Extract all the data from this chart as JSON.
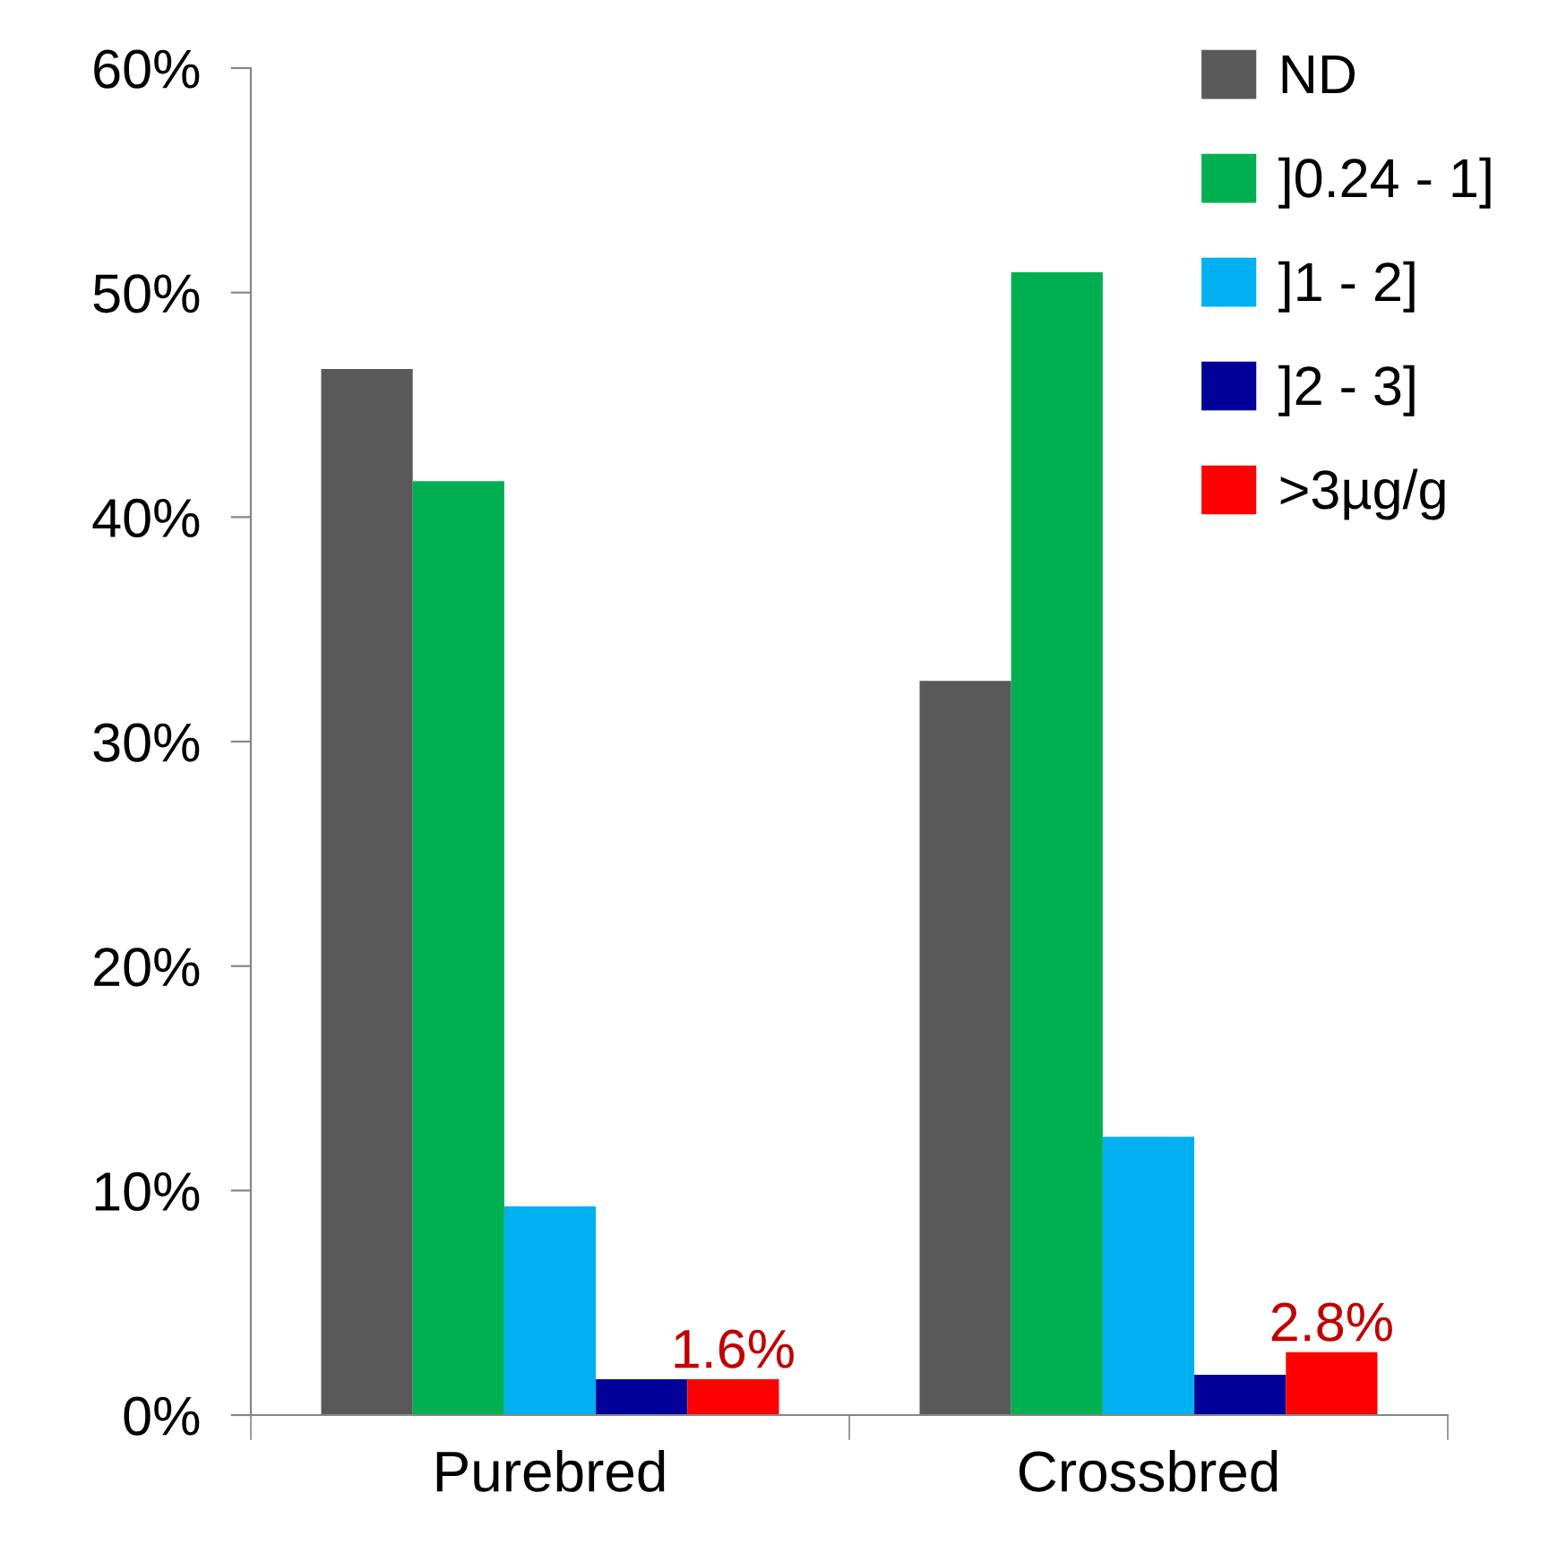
{
  "chart_data": {
    "type": "bar",
    "categories": [
      "Purebred",
      "Crossbred"
    ],
    "series": [
      {
        "name": "ND",
        "color": "#595959",
        "values": [
          46.6,
          32.7
        ]
      },
      {
        "name": "]0.24 - 1]",
        "color": "#00b050",
        "values": [
          41.6,
          50.9
        ]
      },
      {
        "name": "]1 - 2]",
        "color": "#00b0f0",
        "values": [
          9.3,
          12.4
        ]
      },
      {
        "name": "]2 - 3]",
        "color": "#000099",
        "values": [
          1.6,
          1.8
        ]
      },
      {
        "name": ">3µg/g",
        "color": "#ff0000",
        "values": [
          1.6,
          2.8
        ],
        "value_labels": [
          "1.6%",
          "2.8%"
        ]
      }
    ],
    "ylim": [
      0,
      60
    ],
    "yticks": [
      {
        "value": 0,
        "label": "0%"
      },
      {
        "value": 10,
        "label": "10%"
      },
      {
        "value": 20,
        "label": "20%"
      },
      {
        "value": 30,
        "label": "30%"
      },
      {
        "value": 40,
        "label": "40%"
      },
      {
        "value": 50,
        "label": "50%"
      },
      {
        "value": 60,
        "label": "60%"
      }
    ],
    "grid": false,
    "legend": "top right"
  }
}
